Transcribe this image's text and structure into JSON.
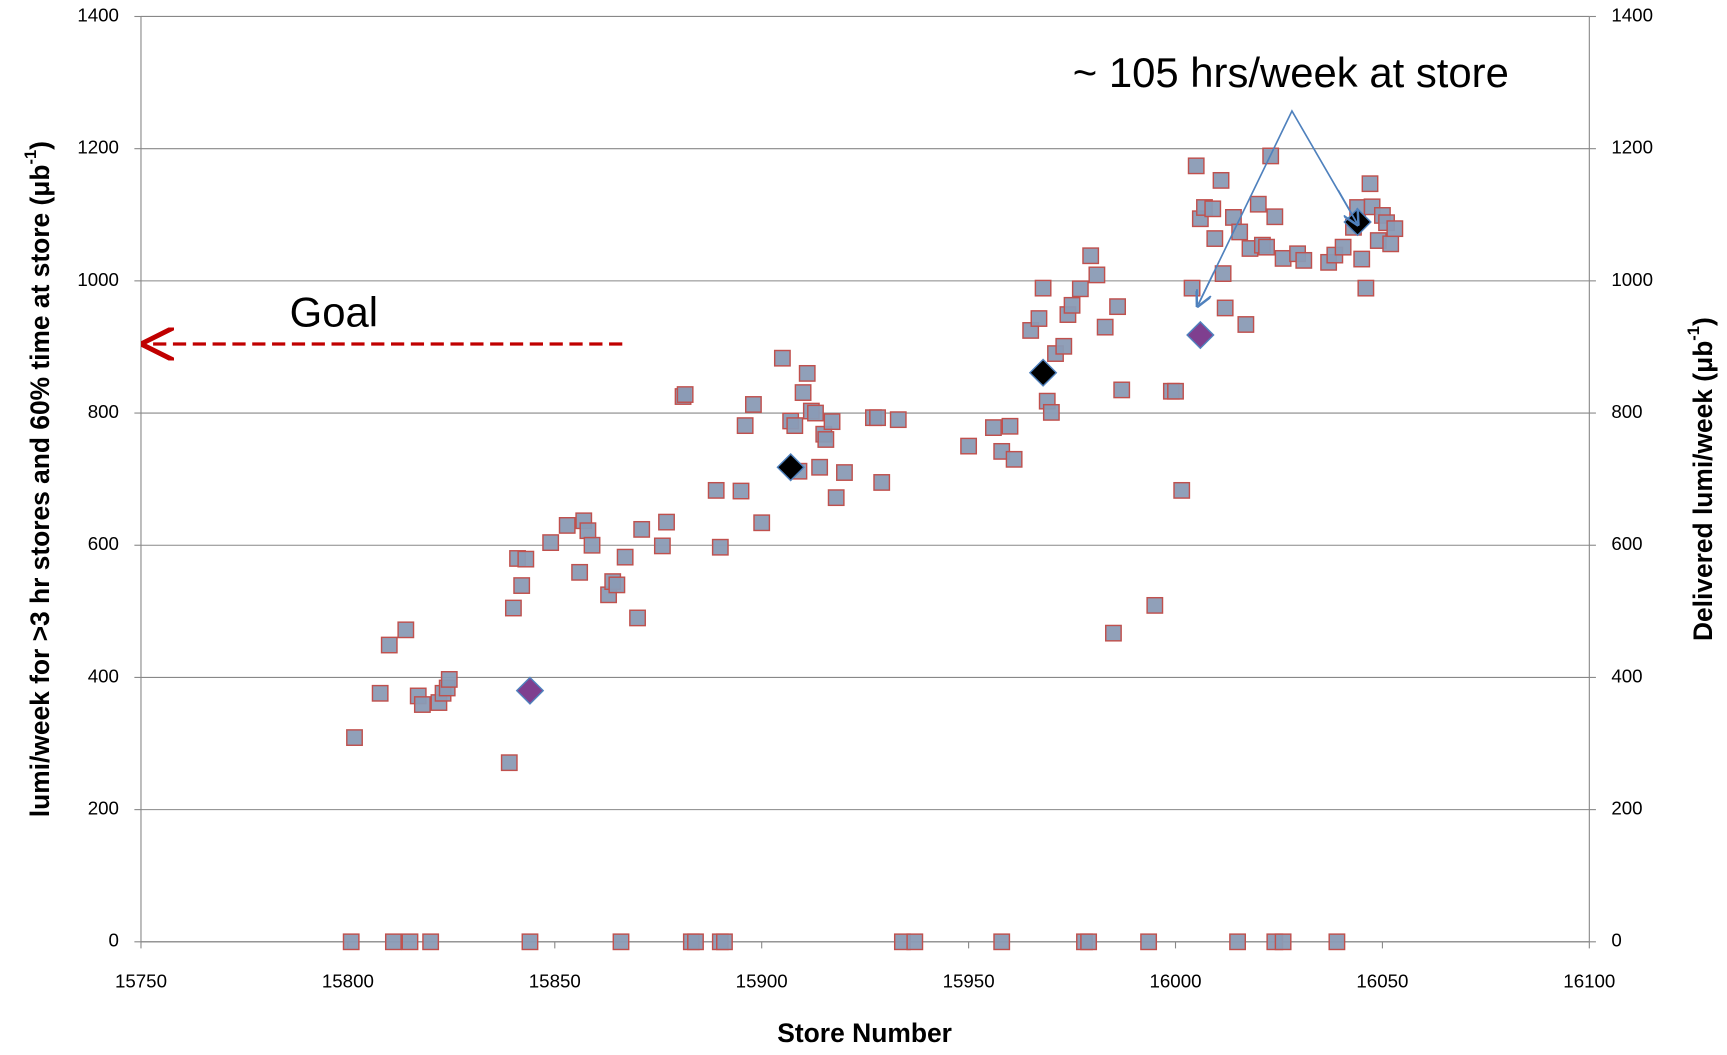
{
  "chart_data": {
    "type": "scatter",
    "xlabel": "Store Number",
    "ylabel": {
      "text": "lumi/week  for >3 hr stores and 60% time at store (μb",
      "sup": "-1",
      "end": ")"
    },
    "y2label": {
      "text": "Delivered lumi/week  (μb",
      "sup": "-1",
      "end": ")"
    },
    "annotations": [
      "Goal",
      "~ 105 hrs/week at store"
    ],
    "xlim": [
      15750,
      16100
    ],
    "xticks": [
      15750,
      15800,
      15850,
      15900,
      15950,
      16000,
      16050,
      16100
    ],
    "ylim": [
      0,
      1400
    ],
    "yticks": [
      0,
      200,
      400,
      600,
      800,
      1000,
      1200,
      1400
    ],
    "y2lim": [
      0,
      1400
    ],
    "y2ticks": [
      0,
      200,
      400,
      600,
      800,
      1000,
      1200,
      1400
    ],
    "grid": true,
    "series": [
      {
        "marker": "square",
        "color": "#8a9bb5",
        "edgecolor": "#c0504d",
        "x": [
          15801.6,
          15807.8,
          15810,
          15814,
          15817,
          15818,
          15822,
          15823,
          15824,
          15824.5,
          15839,
          15840,
          15841,
          15842,
          15843,
          15849,
          15853,
          15856,
          15857,
          15858,
          15859,
          15863,
          15864,
          15865,
          15867,
          15870,
          15871,
          15876,
          15877,
          15881,
          15881.5,
          15889,
          15890,
          15895,
          15896,
          15898,
          15900,
          15905,
          15907,
          15908,
          15909,
          15910,
          15911,
          15912,
          15913,
          15914,
          15915,
          15915.5,
          15917,
          15918,
          15920,
          15927,
          15928,
          15929,
          15933,
          15950,
          15956,
          15958,
          15960,
          15961,
          15965,
          15967,
          15968,
          15969,
          15970,
          15971,
          15973,
          15974,
          15975,
          15977,
          15979.5,
          15981,
          15983,
          15985,
          15986,
          15987,
          15995,
          15999,
          16000,
          16001.5,
          16004,
          16005,
          16006,
          16007,
          16009,
          16009.5,
          16011,
          16011.5,
          16012,
          16014,
          16015.5,
          16017,
          16018,
          16020,
          16021,
          16022,
          16023,
          16024,
          16026,
          16029.5,
          16031,
          16037,
          16038.5,
          16040.5,
          16043,
          16044,
          16045,
          16046,
          16047,
          16047.5,
          16049,
          16050,
          16051,
          16052,
          16053,
          15800.8,
          15811,
          15815,
          15820,
          15844,
          15866,
          15883,
          15884,
          15890,
          15891,
          15934,
          15937,
          15958,
          15978,
          15979,
          15993.5,
          16015,
          16024,
          16026,
          16039
        ],
        "values": [
          309,
          376,
          449,
          472,
          372,
          359,
          362,
          376,
          384,
          397,
          271,
          505,
          580,
          539,
          579,
          604,
          630,
          559,
          637,
          622,
          600,
          525,
          545,
          540,
          582,
          490,
          624,
          599,
          635,
          825,
          828,
          683,
          597,
          682,
          781,
          813,
          634,
          883,
          788,
          781,
          712,
          831,
          860,
          803,
          800,
          718,
          768,
          760,
          787,
          672,
          710,
          793,
          793,
          695,
          790,
          750,
          778,
          742,
          780,
          730,
          925,
          943,
          989,
          818,
          801,
          890,
          901,
          949,
          963,
          988,
          1038,
          1009,
          930,
          467,
          961,
          835,
          509,
          833,
          833,
          683,
          989,
          1174,
          1094,
          1111,
          1109,
          1064,
          1152,
          1011,
          959,
          1096,
          1074,
          934,
          1049,
          1116,
          1054,
          1051,
          1189,
          1097,
          1034,
          1041,
          1031,
          1028,
          1039,
          1051,
          1081,
          1111,
          1033,
          989,
          1147,
          1112,
          1061,
          1099,
          1088,
          1056,
          1079,
          0,
          0,
          0,
          0,
          0,
          0,
          0,
          0,
          0,
          0,
          0,
          0,
          0,
          0,
          0,
          0,
          0,
          0,
          0,
          0
        ]
      },
      {
        "marker": "diamond",
        "color": "#7f3f8f",
        "edgecolor": "#4f81bd",
        "x": [
          15844,
          16006
        ],
        "values": [
          380,
          918
        ]
      },
      {
        "marker": "diamond",
        "color": "#000000",
        "edgecolor": "#4f81bd",
        "x": [
          15907,
          15968,
          16044
        ],
        "values": [
          718,
          861,
          1089
        ]
      }
    ]
  }
}
